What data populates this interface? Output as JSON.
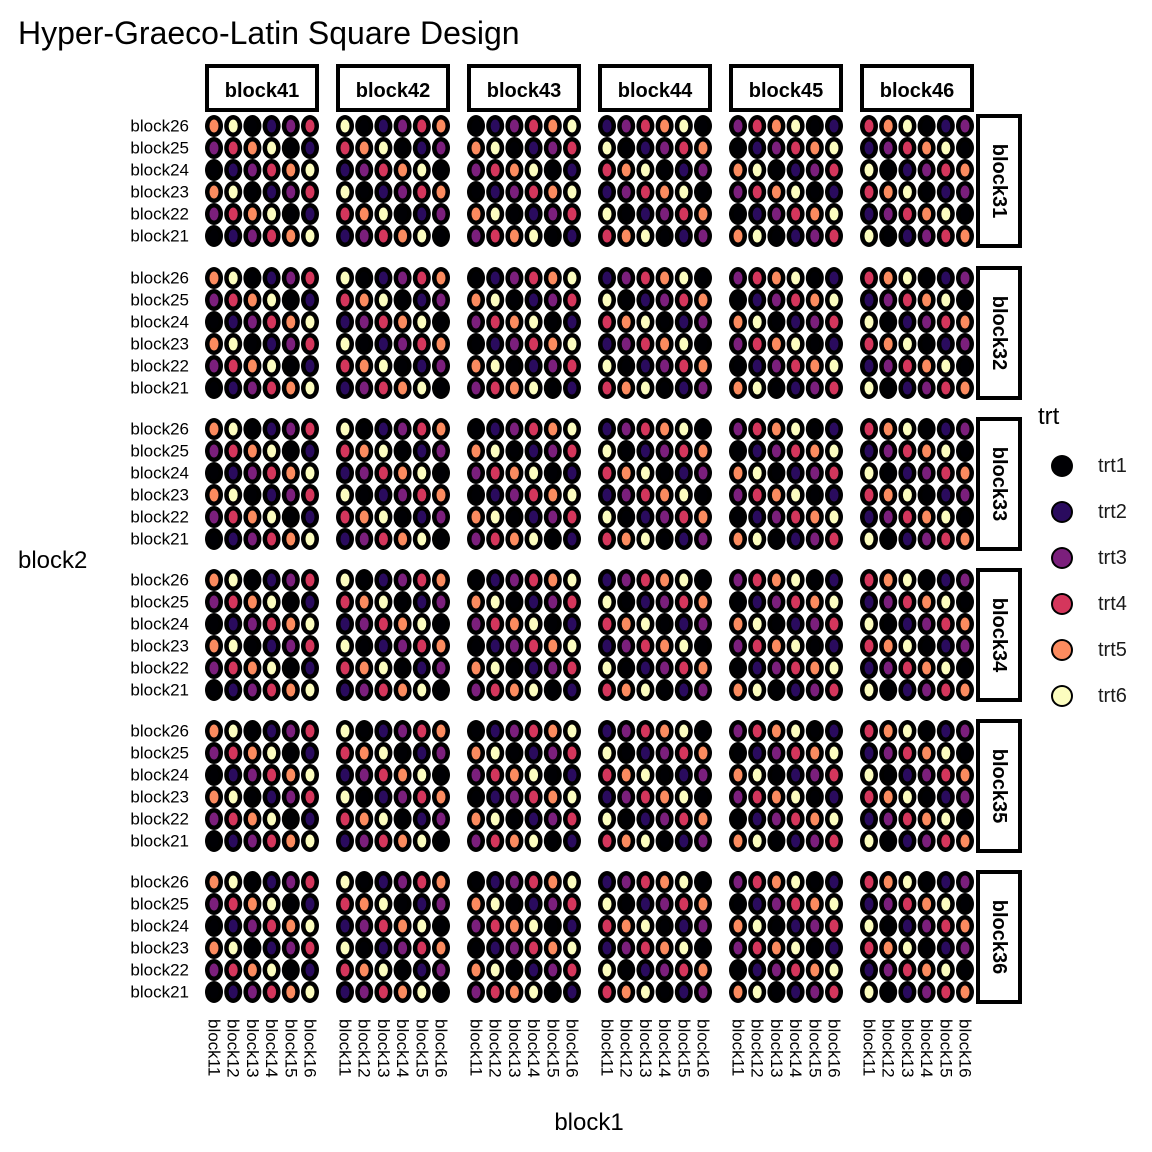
{
  "chart_data": {
    "type": "scatter",
    "title": "Hyper-Graeco-Latin Square Design",
    "xlabel": "block1",
    "ylabel": "block2",
    "x_levels": [
      "block11",
      "block12",
      "block13",
      "block14",
      "block15",
      "block16"
    ],
    "y_levels": [
      "block21",
      "block22",
      "block23",
      "block24",
      "block25",
      "block26"
    ],
    "facet_cols": [
      "block41",
      "block42",
      "block43",
      "block44",
      "block45",
      "block46"
    ],
    "facet_rows": [
      "block31",
      "block32",
      "block33",
      "block34",
      "block35",
      "block36"
    ],
    "legend": {
      "title": "trt",
      "position": "right",
      "entries": [
        {
          "name": "trt1",
          "color": "#000004"
        },
        {
          "name": "trt2",
          "color": "#2A0B5E"
        },
        {
          "name": "trt3",
          "color": "#7B1F7C"
        },
        {
          "name": "trt4",
          "color": "#D4365C"
        },
        {
          "name": "trt5",
          "color": "#FB8B5F"
        },
        {
          "name": "trt6",
          "color": "#FCFDBF"
        }
      ]
    },
    "grid": false,
    "point_pattern": "panel p: treatment index at (x=i, y=j) = ((i + 2*j + p) mod 6) + 1, i/j = 0-based level index"
  }
}
